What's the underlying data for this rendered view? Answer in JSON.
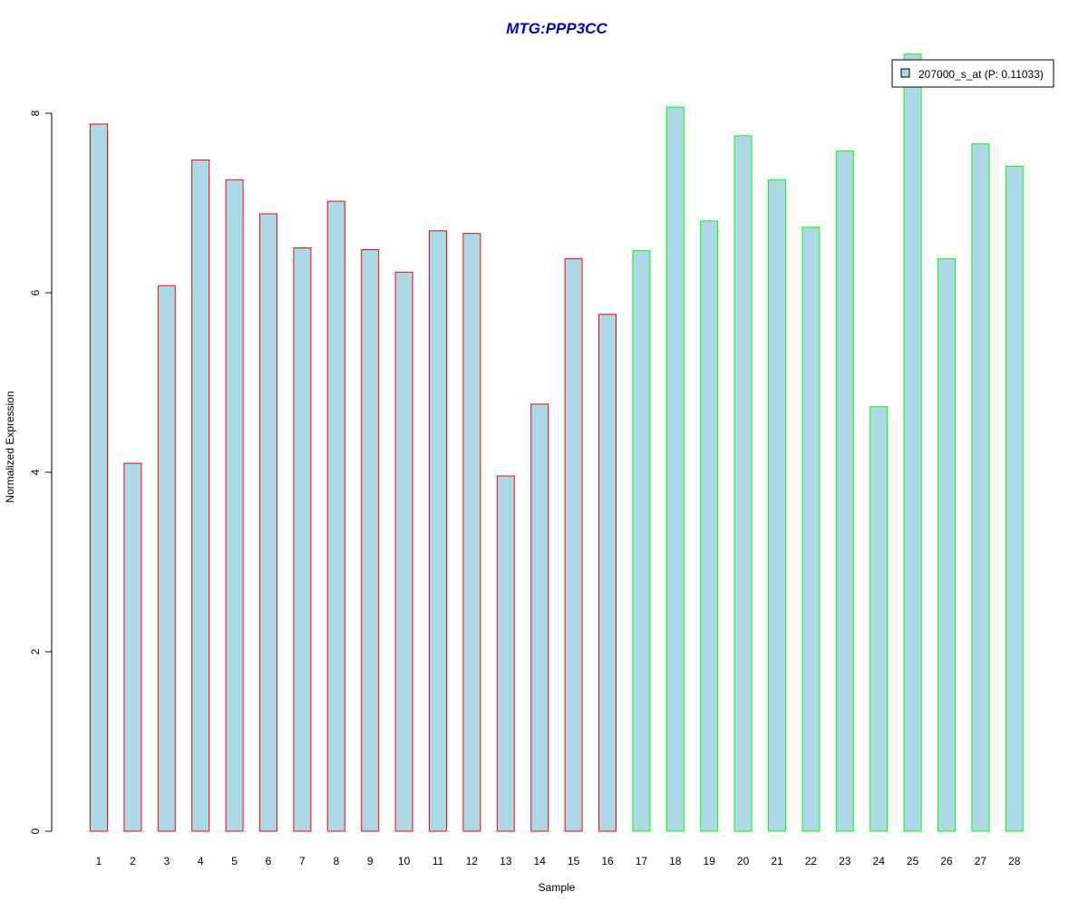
{
  "chart_data": {
    "type": "bar",
    "title": "MTG:PPP3CC",
    "xlabel": "Sample",
    "ylabel": "Normalized Expression",
    "categories": [
      "1",
      "2",
      "3",
      "4",
      "5",
      "6",
      "7",
      "8",
      "9",
      "10",
      "11",
      "12",
      "13",
      "14",
      "15",
      "16",
      "17",
      "18",
      "19",
      "20",
      "21",
      "22",
      "23",
      "24",
      "25",
      "26",
      "27",
      "28"
    ],
    "series": [
      {
        "name": "207000_s_at (P: 0.11033)",
        "values": [
          7.88,
          4.1,
          6.08,
          7.48,
          7.26,
          6.88,
          6.5,
          7.02,
          6.48,
          6.23,
          6.69,
          6.66,
          3.96,
          4.76,
          6.38,
          5.76,
          6.47,
          8.07,
          6.8,
          7.75,
          7.26,
          6.73,
          7.58,
          4.73,
          8.66,
          6.38,
          7.66,
          7.41
        ],
        "fill": "#add8e6"
      }
    ],
    "group_border_colors": {
      "group_1": {
        "samples": [
          "1",
          "2",
          "3",
          "4",
          "5",
          "6",
          "7",
          "8",
          "9",
          "10",
          "11",
          "12",
          "13",
          "14",
          "15",
          "16"
        ],
        "color": "#ff0000"
      },
      "group_2": {
        "samples": [
          "17",
          "18",
          "19",
          "20",
          "21",
          "22",
          "23",
          "24",
          "25",
          "26",
          "27",
          "28"
        ],
        "color": "#00ff00"
      }
    },
    "y_ticks": [
      0,
      2,
      4,
      6,
      8
    ],
    "ylim": [
      0,
      8.66
    ],
    "grid": false,
    "legend_position": "top-right",
    "title_color": "#0000cd"
  }
}
